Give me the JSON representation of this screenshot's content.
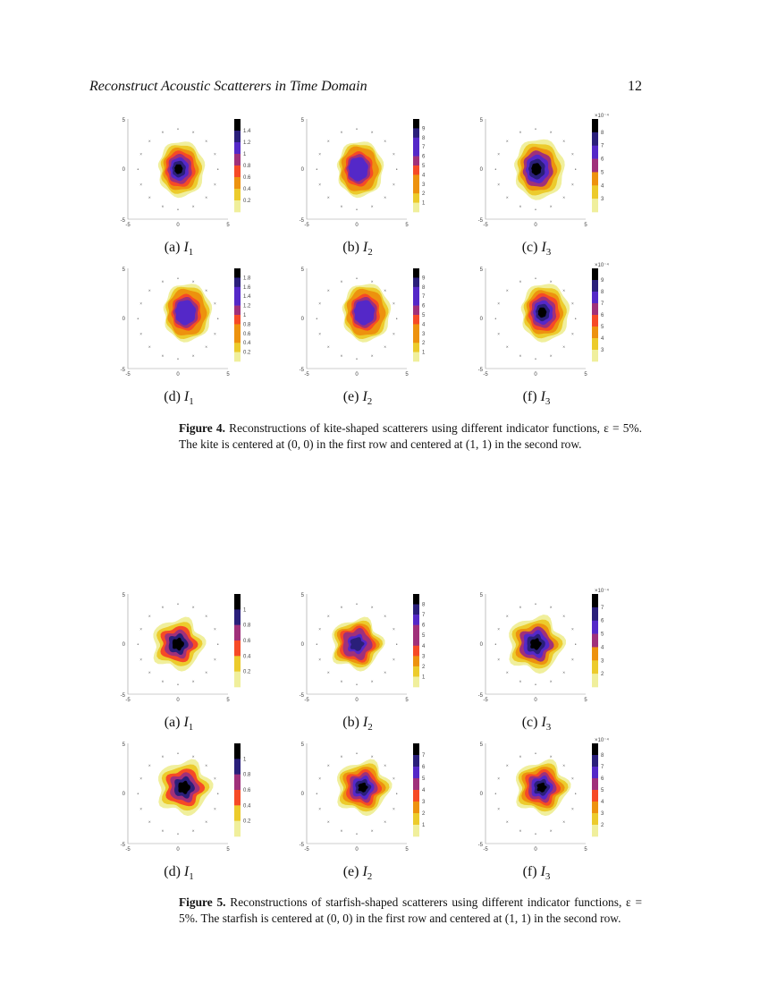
{
  "header": {
    "title": "Reconstruct Acoustic Scatterers in Time Domain",
    "page_number": "12"
  },
  "axis_ticks": {
    "x": [
      "-5",
      "0",
      "5"
    ],
    "y": [
      "5",
      "0",
      "-5"
    ]
  },
  "colormap": [
    "#f0ef9c",
    "#eccb2c",
    "#ed920e",
    "#f64a26",
    "#a0307a",
    "#5428c8",
    "#2a1f7a",
    "#000000"
  ],
  "figures": [
    {
      "caption_label": "Figure 4.",
      "caption_text": "Reconstructions of kite-shaped scatterers using different indicator functions, ε = 5%. The kite is centered at (0, 0) in the first row and centered at (1, 1) in the second row.",
      "panels": [
        {
          "label": "(a)",
          "indicator": "I",
          "sub": "1",
          "colorbar_ticks": [
            "1.4",
            "1.2",
            "1",
            "0.8",
            "0.6",
            "0.4",
            "0.2"
          ],
          "exponent": ""
        },
        {
          "label": "(b)",
          "indicator": "I",
          "sub": "2",
          "colorbar_ticks": [
            "9",
            "8",
            "7",
            "6",
            "5",
            "4",
            "3",
            "2",
            "1"
          ],
          "exponent": ""
        },
        {
          "label": "(c)",
          "indicator": "I",
          "sub": "3",
          "colorbar_ticks": [
            "8",
            "7",
            "6",
            "5",
            "4",
            "3"
          ],
          "exponent": "×10⁻⁴"
        },
        {
          "label": "(d)",
          "indicator": "I",
          "sub": "1",
          "colorbar_ticks": [
            "1.8",
            "1.6",
            "1.4",
            "1.2",
            "1",
            "0.8",
            "0.6",
            "0.4",
            "0.2"
          ],
          "exponent": ""
        },
        {
          "label": "(e)",
          "indicator": "I",
          "sub": "2",
          "colorbar_ticks": [
            "9",
            "8",
            "7",
            "6",
            "5",
            "4",
            "3",
            "2",
            "1"
          ],
          "exponent": ""
        },
        {
          "label": "(f)",
          "indicator": "I",
          "sub": "3",
          "colorbar_ticks": [
            "9",
            "8",
            "7",
            "6",
            "5",
            "4",
            "3"
          ],
          "exponent": "×10⁻⁴"
        }
      ]
    },
    {
      "caption_label": "Figure 5.",
      "caption_text": "Reconstructions of starfish-shaped scatterers using different indicator functions, ε = 5%. The starfish is centered at (0, 0) in the first row and centered at (1, 1) in the second row.",
      "panels": [
        {
          "label": "(a)",
          "indicator": "I",
          "sub": "1",
          "colorbar_ticks": [
            "1",
            "0.8",
            "0.6",
            "0.4",
            "0.2"
          ],
          "exponent": ""
        },
        {
          "label": "(b)",
          "indicator": "I",
          "sub": "2",
          "colorbar_ticks": [
            "8",
            "7",
            "6",
            "5",
            "4",
            "3",
            "2",
            "1"
          ],
          "exponent": ""
        },
        {
          "label": "(c)",
          "indicator": "I",
          "sub": "3",
          "colorbar_ticks": [
            "7",
            "6",
            "5",
            "4",
            "3",
            "2"
          ],
          "exponent": "×10⁻⁴"
        },
        {
          "label": "(d)",
          "indicator": "I",
          "sub": "1",
          "colorbar_ticks": [
            "1",
            "0.8",
            "0.6",
            "0.4",
            "0.2"
          ],
          "exponent": ""
        },
        {
          "label": "(e)",
          "indicator": "I",
          "sub": "2",
          "colorbar_ticks": [
            "7",
            "6",
            "5",
            "4",
            "3",
            "2",
            "1"
          ],
          "exponent": ""
        },
        {
          "label": "(f)",
          "indicator": "I",
          "sub": "3",
          "colorbar_ticks": [
            "8",
            "7",
            "6",
            "5",
            "4",
            "3",
            "2"
          ],
          "exponent": "×10⁻⁴"
        }
      ]
    }
  ]
}
